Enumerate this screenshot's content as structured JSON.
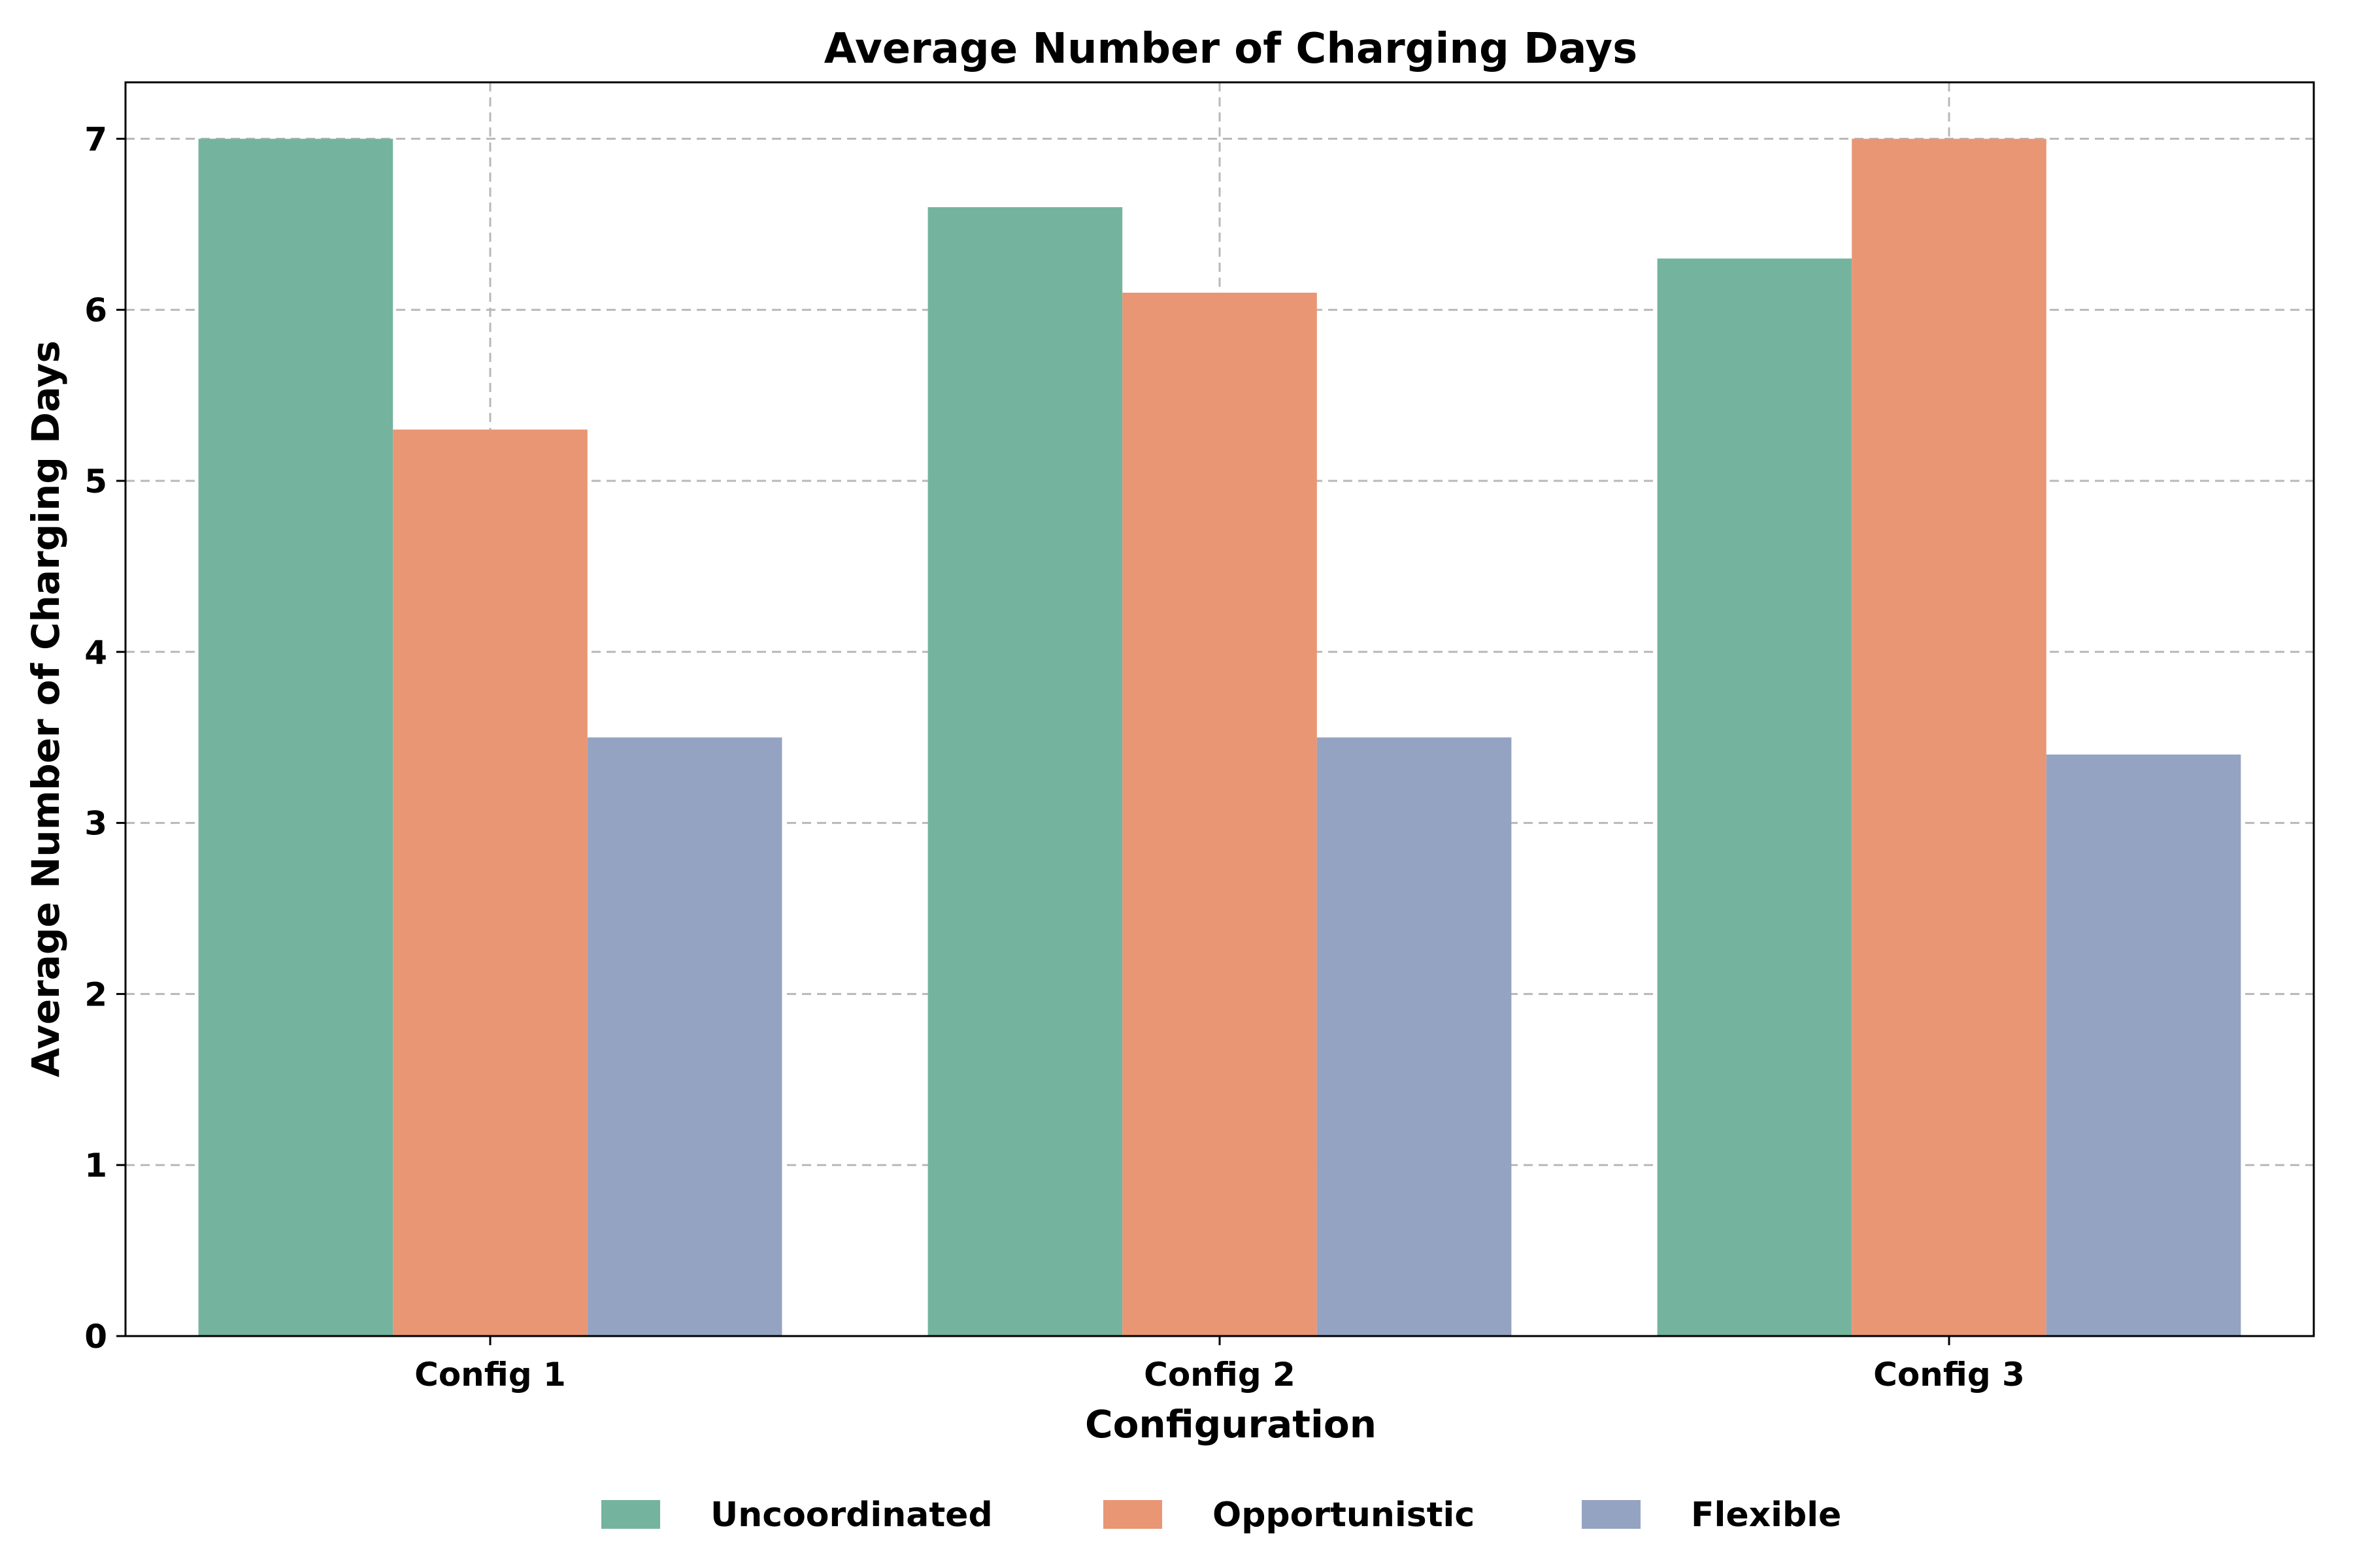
{
  "chart_data": {
    "type": "bar",
    "title": "Average Number of Charging Days",
    "xlabel": "Configuration",
    "ylabel": "Average Number of Charging Days",
    "categories": [
      "Config 1",
      "Config 2",
      "Config 3"
    ],
    "series": [
      {
        "name": "Uncoordinated",
        "color": "#74b49f",
        "values": [
          7.0,
          6.6,
          6.3
        ]
      },
      {
        "name": "Opportunistic",
        "color": "#e89674",
        "values": [
          5.3,
          6.1,
          7.0
        ]
      },
      {
        "name": "Flexible",
        "color": "#95a3c2",
        "values": [
          3.5,
          3.5,
          3.4
        ]
      }
    ],
    "ylim": [
      0,
      7.33
    ],
    "yticks": [
      "0",
      "1",
      "2",
      "3",
      "4",
      "5",
      "6",
      "7"
    ],
    "grid": true,
    "legend_position": "bottom"
  }
}
